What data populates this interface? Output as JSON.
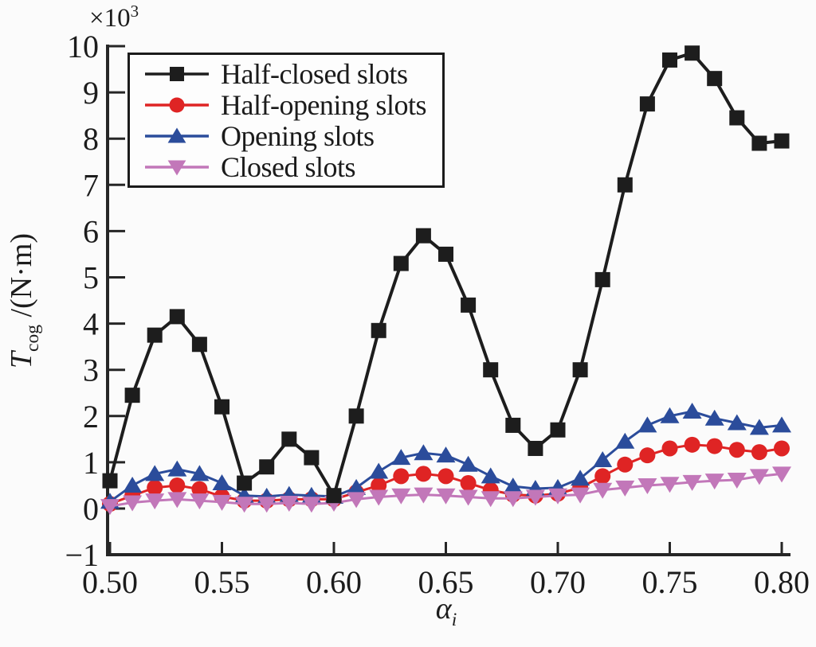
{
  "figure": {
    "multiplier_base": "×10",
    "multiplier_exp": "3",
    "y_label_main": "T",
    "y_label_sub": "cog",
    "y_label_rest": " /(N·m)",
    "x_label_main": "α",
    "x_label_sub": "i"
  },
  "chart_data": {
    "type": "line",
    "title": "",
    "xlabel": "α_i",
    "ylabel": "T_cog /(N·m)",
    "y_multiplier": "×10³",
    "xlim": [
      0.5,
      0.8
    ],
    "ylim": [
      -1,
      10
    ],
    "grid": false,
    "legend_position": "top-left",
    "x_ticks": [
      0.5,
      0.55,
      0.6,
      0.65,
      0.7,
      0.75,
      0.8
    ],
    "x_tick_labels": [
      "0.50",
      "0.55",
      "0.60",
      "0.65",
      "0.70",
      "0.75",
      "0.80"
    ],
    "y_ticks": [
      -1,
      0,
      1,
      2,
      3,
      4,
      5,
      6,
      7,
      8,
      9,
      10
    ],
    "y_tick_labels": [
      "−1",
      "0",
      "1",
      "2",
      "3",
      "4",
      "5",
      "6",
      "7",
      "8",
      "9",
      "10"
    ],
    "x": [
      0.5,
      0.51,
      0.52,
      0.53,
      0.54,
      0.55,
      0.56,
      0.57,
      0.58,
      0.59,
      0.6,
      0.61,
      0.62,
      0.63,
      0.64,
      0.65,
      0.66,
      0.67,
      0.68,
      0.69,
      0.7,
      0.71,
      0.72,
      0.73,
      0.74,
      0.75,
      0.76,
      0.77,
      0.78,
      0.79,
      0.8
    ],
    "series": [
      {
        "name": "Half-closed slots",
        "color": "#1d1d1d",
        "marker": "square",
        "values": [
          0.6,
          2.45,
          3.75,
          4.15,
          3.55,
          2.2,
          0.55,
          0.9,
          1.5,
          1.1,
          0.28,
          2.0,
          3.85,
          5.3,
          5.9,
          5.5,
          4.4,
          3.0,
          1.8,
          1.3,
          1.7,
          3.0,
          4.95,
          7.0,
          8.75,
          9.7,
          9.85,
          9.3,
          8.45,
          7.9,
          7.95
        ]
      },
      {
        "name": "Half-opening slots",
        "color": "#df2424",
        "marker": "circle",
        "values": [
          0.1,
          0.28,
          0.45,
          0.5,
          0.42,
          0.26,
          0.17,
          0.17,
          0.2,
          0.2,
          0.2,
          0.35,
          0.5,
          0.7,
          0.75,
          0.7,
          0.55,
          0.4,
          0.3,
          0.28,
          0.32,
          0.45,
          0.7,
          0.95,
          1.15,
          1.3,
          1.38,
          1.35,
          1.27,
          1.22,
          1.3
        ]
      },
      {
        "name": "Opening slots",
        "color": "#2b4c9b",
        "marker": "triangle-up",
        "values": [
          0.15,
          0.5,
          0.75,
          0.85,
          0.75,
          0.55,
          0.28,
          0.26,
          0.3,
          0.28,
          0.26,
          0.45,
          0.8,
          1.1,
          1.2,
          1.15,
          0.95,
          0.7,
          0.48,
          0.43,
          0.45,
          0.65,
          1.05,
          1.45,
          1.8,
          2.0,
          2.1,
          1.95,
          1.85,
          1.75,
          1.8
        ]
      },
      {
        "name": "Closed slots",
        "color": "#c277b9",
        "marker": "triangle-down",
        "values": [
          0.05,
          0.13,
          0.17,
          0.2,
          0.17,
          0.14,
          0.1,
          0.1,
          0.12,
          0.1,
          0.12,
          0.2,
          0.25,
          0.28,
          0.3,
          0.28,
          0.25,
          0.22,
          0.22,
          0.25,
          0.28,
          0.3,
          0.4,
          0.45,
          0.5,
          0.53,
          0.57,
          0.6,
          0.62,
          0.7,
          0.75
        ]
      }
    ]
  }
}
